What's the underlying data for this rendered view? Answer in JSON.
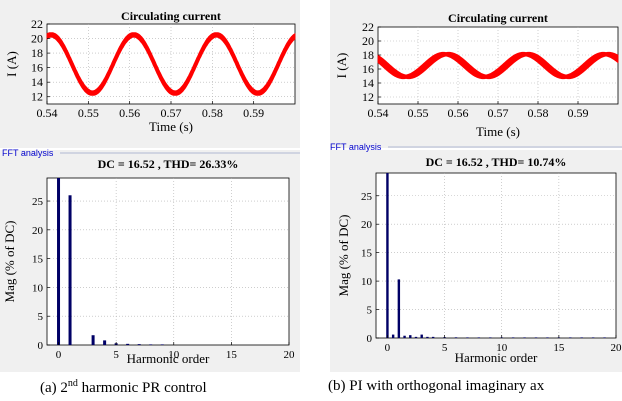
{
  "panels": [
    {
      "id": "a",
      "caption_prefix": "(a) 2",
      "caption_sup": "nd",
      "caption_suffix": " harmonic PR control",
      "fft_label": "FFT analysis",
      "fft_title": "DC = 16.52 , THD= 26.33%"
    },
    {
      "id": "b",
      "caption": "(b) PI with orthogonal imaginary ax",
      "fft_label": "FFT analysis",
      "fft_title": "DC = 16.52 , THD= 10.74%"
    }
  ],
  "colors": {
    "time_trace": "#ff0000",
    "fft_bars": "#000066",
    "fft_label": "#0000cc",
    "panel_bg": "#f0f0f0"
  },
  "chart_data": [
    {
      "type": "line",
      "title": "Circulating current",
      "xlabel": "Time (s)",
      "ylabel": "I (A)",
      "xlim": [
        0.54,
        0.6
      ],
      "ylim": [
        11,
        22
      ],
      "xticks": [
        0.54,
        0.55,
        0.56,
        0.57,
        0.58,
        0.59
      ],
      "yticks": [
        12,
        14,
        16,
        18,
        20,
        22
      ],
      "series": [
        {
          "mean": 16.5,
          "amplitude": 4.0,
          "period": 0.02,
          "peak_at": 0.541,
          "band": 0.6,
          "ripple_amp": 0.5
        }
      ]
    },
    {
      "type": "bar",
      "title": "DC = 16.52 , THD= 26.33%",
      "xlabel": "Harmonic order",
      "ylabel": "Mag (% of DC)",
      "xlim": [
        -1,
        20
      ],
      "ylim": [
        0,
        29
      ],
      "xticks": [
        0,
        5,
        10,
        15,
        20
      ],
      "yticks": [
        0,
        5,
        10,
        15,
        20,
        25
      ],
      "x": [
        0,
        1,
        3,
        4,
        5,
        6,
        7,
        8,
        9
      ],
      "values": [
        29,
        26,
        1.7,
        0.8,
        0.3,
        0.2,
        0.15,
        0.1,
        0.1
      ]
    },
    {
      "type": "line",
      "title": "Circulating current",
      "xlabel": "Time (s)",
      "ylabel": "I (A)",
      "xlim": [
        0.54,
        0.6
      ],
      "ylim": [
        11,
        22
      ],
      "xticks": [
        0.54,
        0.55,
        0.56,
        0.57,
        0.58,
        0.59
      ],
      "yticks": [
        12,
        14,
        16,
        18,
        20,
        22
      ],
      "series": [
        {
          "mean": 16.5,
          "amplitude": 1.6,
          "period": 0.02,
          "peak_at": 0.557,
          "band": 0.5,
          "ripple_amp": 0.7
        }
      ]
    },
    {
      "type": "bar",
      "title": "DC = 16.52 , THD= 10.74%",
      "xlabel": "Harmonic order",
      "ylabel": "Mag (% of DC)",
      "xlim": [
        -1,
        20
      ],
      "ylim": [
        0,
        29
      ],
      "xticks": [
        0,
        5,
        10,
        15,
        20
      ],
      "yticks": [
        0,
        5,
        10,
        15,
        20,
        25
      ],
      "x": [
        0,
        0.5,
        1,
        1.5,
        2,
        2.5,
        3,
        3.5,
        4,
        5,
        6,
        7,
        8,
        9,
        10,
        11,
        12,
        13,
        14,
        15,
        16,
        17,
        18,
        19
      ],
      "values": [
        29,
        0.6,
        10.3,
        0.4,
        0.5,
        0.2,
        0.6,
        0.2,
        0.2,
        0.15,
        0.12,
        0.1,
        0.1,
        0.1,
        0.1,
        0.1,
        0.1,
        0.08,
        0.08,
        0.08,
        0.08,
        0.08,
        0.08,
        0.08
      ]
    }
  ]
}
